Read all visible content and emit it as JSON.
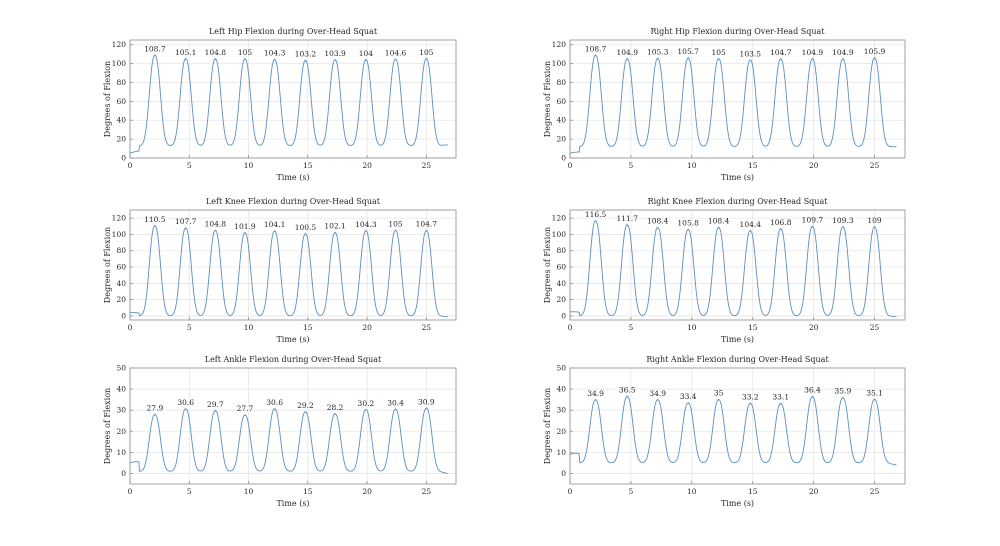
{
  "colors": {
    "line": "#5a8fc3",
    "grid": "#e6e6e6",
    "axis": "#8c8c8c",
    "text": "#262626"
  },
  "chart_data": [
    {
      "type": "line",
      "title": "Left Hip Flexion during Over-Head Squat",
      "xlabel": "Time (s)",
      "ylabel": "Degrees of Flexion",
      "xlim": [
        0,
        27.5
      ],
      "ylim": [
        0,
        125
      ],
      "xticks": [
        0,
        5,
        10,
        15,
        20,
        25
      ],
      "yticks": [
        0,
        20,
        40,
        60,
        80,
        100,
        120
      ],
      "grid": true,
      "baseline": 7,
      "trough": 13,
      "start_level": 5,
      "end_value": 14,
      "x_end": 26.8,
      "peaks": [
        {
          "x": 2.1,
          "value": 108.7,
          "label": "108.7"
        },
        {
          "x": 4.7,
          "value": 105.1,
          "label": "105.1"
        },
        {
          "x": 7.2,
          "value": 104.8,
          "label": "104.8"
        },
        {
          "x": 9.7,
          "value": 105,
          "label": "105"
        },
        {
          "x": 12.2,
          "value": 104.3,
          "label": "104.3"
        },
        {
          "x": 14.8,
          "value": 103.2,
          "label": "103.2"
        },
        {
          "x": 17.3,
          "value": 103.9,
          "label": "103.9"
        },
        {
          "x": 19.9,
          "value": 104,
          "label": "104"
        },
        {
          "x": 22.4,
          "value": 104.6,
          "label": "104.6"
        },
        {
          "x": 25.0,
          "value": 105,
          "label": "105"
        }
      ]
    },
    {
      "type": "line",
      "title": "Right Hip Flexion during Over-Head Squat",
      "xlabel": "Time (s)",
      "ylabel": "Degrees of Flexion",
      "xlim": [
        0,
        27.5
      ],
      "ylim": [
        0,
        125
      ],
      "xticks": [
        0,
        5,
        10,
        15,
        20,
        25
      ],
      "yticks": [
        0,
        20,
        40,
        60,
        80,
        100,
        120
      ],
      "grid": true,
      "baseline": 6,
      "trough": 12,
      "start_level": 5,
      "end_value": 12,
      "x_end": 26.8,
      "peaks": [
        {
          "x": 2.1,
          "value": 108.7,
          "label": "108.7"
        },
        {
          "x": 4.7,
          "value": 104.9,
          "label": "104.9"
        },
        {
          "x": 7.2,
          "value": 105.3,
          "label": "105.3"
        },
        {
          "x": 9.7,
          "value": 105.7,
          "label": "105.7"
        },
        {
          "x": 12.2,
          "value": 105,
          "label": "105"
        },
        {
          "x": 14.8,
          "value": 103.5,
          "label": "103.5"
        },
        {
          "x": 17.3,
          "value": 104.7,
          "label": "104.7"
        },
        {
          "x": 19.9,
          "value": 104.9,
          "label": "104.9"
        },
        {
          "x": 22.4,
          "value": 104.9,
          "label": "104.9"
        },
        {
          "x": 25.0,
          "value": 105.9,
          "label": "105.9"
        }
      ]
    },
    {
      "type": "line",
      "title": "Left Knee Flexion during Over-Head Squat",
      "xlabel": "Time (s)",
      "ylabel": "Degrees of Flexion",
      "xlim": [
        0,
        27.5
      ],
      "ylim": [
        -5,
        130
      ],
      "xticks": [
        0,
        5,
        10,
        15,
        20,
        25
      ],
      "yticks": [
        0,
        20,
        40,
        60,
        80,
        100,
        120
      ],
      "grid": true,
      "baseline": 3,
      "trough": 0,
      "start_level": 4,
      "end_value": -1,
      "x_end": 26.8,
      "peaks": [
        {
          "x": 2.1,
          "value": 110.5,
          "label": "110.5"
        },
        {
          "x": 4.7,
          "value": 107.7,
          "label": "107.7"
        },
        {
          "x": 7.2,
          "value": 104.8,
          "label": "104.8"
        },
        {
          "x": 9.7,
          "value": 101.9,
          "label": "101.9"
        },
        {
          "x": 12.2,
          "value": 104.1,
          "label": "104.1"
        },
        {
          "x": 14.8,
          "value": 100.5,
          "label": "100.5"
        },
        {
          "x": 17.3,
          "value": 102.1,
          "label": "102.1"
        },
        {
          "x": 19.9,
          "value": 104.3,
          "label": "104.3"
        },
        {
          "x": 22.4,
          "value": 105,
          "label": "105"
        },
        {
          "x": 25.0,
          "value": 104.7,
          "label": "104.7"
        }
      ]
    },
    {
      "type": "line",
      "title": "Right Knee Flexion during Over-Head Squat",
      "xlabel": "Time (s)",
      "ylabel": "Degrees of Flexion",
      "xlim": [
        0,
        27.5
      ],
      "ylim": [
        -5,
        130
      ],
      "xticks": [
        0,
        5,
        10,
        15,
        20,
        25
      ],
      "yticks": [
        0,
        20,
        40,
        60,
        80,
        100,
        120
      ],
      "grid": true,
      "baseline": 4,
      "trough": 0,
      "start_level": 5,
      "end_value": -1,
      "x_end": 26.8,
      "peaks": [
        {
          "x": 2.1,
          "value": 116.5,
          "label": "116.5"
        },
        {
          "x": 4.7,
          "value": 111.7,
          "label": "111.7"
        },
        {
          "x": 7.2,
          "value": 108.4,
          "label": "108.4"
        },
        {
          "x": 9.7,
          "value": 105.8,
          "label": "105.8"
        },
        {
          "x": 12.2,
          "value": 108.4,
          "label": "108.4"
        },
        {
          "x": 14.8,
          "value": 104.4,
          "label": "104.4"
        },
        {
          "x": 17.3,
          "value": 106.8,
          "label": "106.8"
        },
        {
          "x": 19.9,
          "value": 109.7,
          "label": "109.7"
        },
        {
          "x": 22.4,
          "value": 109.3,
          "label": "109.3"
        },
        {
          "x": 25.0,
          "value": 109,
          "label": "109"
        }
      ]
    },
    {
      "type": "line",
      "title": "Left Ankle Flexion during Over-Head Squat",
      "xlabel": "Time (s)",
      "ylabel": "Degrees of Flexion",
      "xlim": [
        0,
        27.5
      ],
      "ylim": [
        -5,
        50
      ],
      "xticks": [
        0,
        5,
        10,
        15,
        20,
        25
      ],
      "yticks": [
        0,
        10,
        20,
        30,
        40,
        50
      ],
      "grid": true,
      "baseline": 5,
      "trough": 1,
      "start_level": 5,
      "end_value": 0,
      "x_end": 26.8,
      "peaks": [
        {
          "x": 2.1,
          "value": 27.9,
          "label": "27.9"
        },
        {
          "x": 4.7,
          "value": 30.6,
          "label": "30.6"
        },
        {
          "x": 7.2,
          "value": 29.7,
          "label": "29.7"
        },
        {
          "x": 9.7,
          "value": 27.7,
          "label": "27.7"
        },
        {
          "x": 12.2,
          "value": 30.6,
          "label": "30.6"
        },
        {
          "x": 14.8,
          "value": 29.2,
          "label": "29.2"
        },
        {
          "x": 17.3,
          "value": 28.2,
          "label": "28.2"
        },
        {
          "x": 19.9,
          "value": 30.2,
          "label": "30.2"
        },
        {
          "x": 22.4,
          "value": 30.4,
          "label": "30.4"
        },
        {
          "x": 25.0,
          "value": 30.9,
          "label": "30.9"
        }
      ]
    },
    {
      "type": "line",
      "title": "Right Ankle Flexion during Over-Head Squat",
      "xlabel": "Time (s)",
      "ylabel": "Degrees of Flexion",
      "xlim": [
        0,
        27.5
      ],
      "ylim": [
        -5,
        50
      ],
      "xticks": [
        0,
        5,
        10,
        15,
        20,
        25
      ],
      "yticks": [
        0,
        10,
        20,
        30,
        40,
        50
      ],
      "grid": true,
      "baseline": 9,
      "trough": 5,
      "start_level": 9,
      "end_value": 4,
      "x_end": 26.8,
      "peaks": [
        {
          "x": 2.1,
          "value": 34.9,
          "label": "34.9"
        },
        {
          "x": 4.7,
          "value": 36.5,
          "label": "36.5"
        },
        {
          "x": 7.2,
          "value": 34.9,
          "label": "34.9"
        },
        {
          "x": 9.7,
          "value": 33.4,
          "label": "33.4"
        },
        {
          "x": 12.2,
          "value": 35,
          "label": "35"
        },
        {
          "x": 14.8,
          "value": 33.2,
          "label": "33.2"
        },
        {
          "x": 17.3,
          "value": 33.1,
          "label": "33.1"
        },
        {
          "x": 19.9,
          "value": 36.4,
          "label": "36.4"
        },
        {
          "x": 22.4,
          "value": 35.9,
          "label": "35.9"
        },
        {
          "x": 25.0,
          "value": 35.1,
          "label": "35.1"
        }
      ]
    }
  ]
}
